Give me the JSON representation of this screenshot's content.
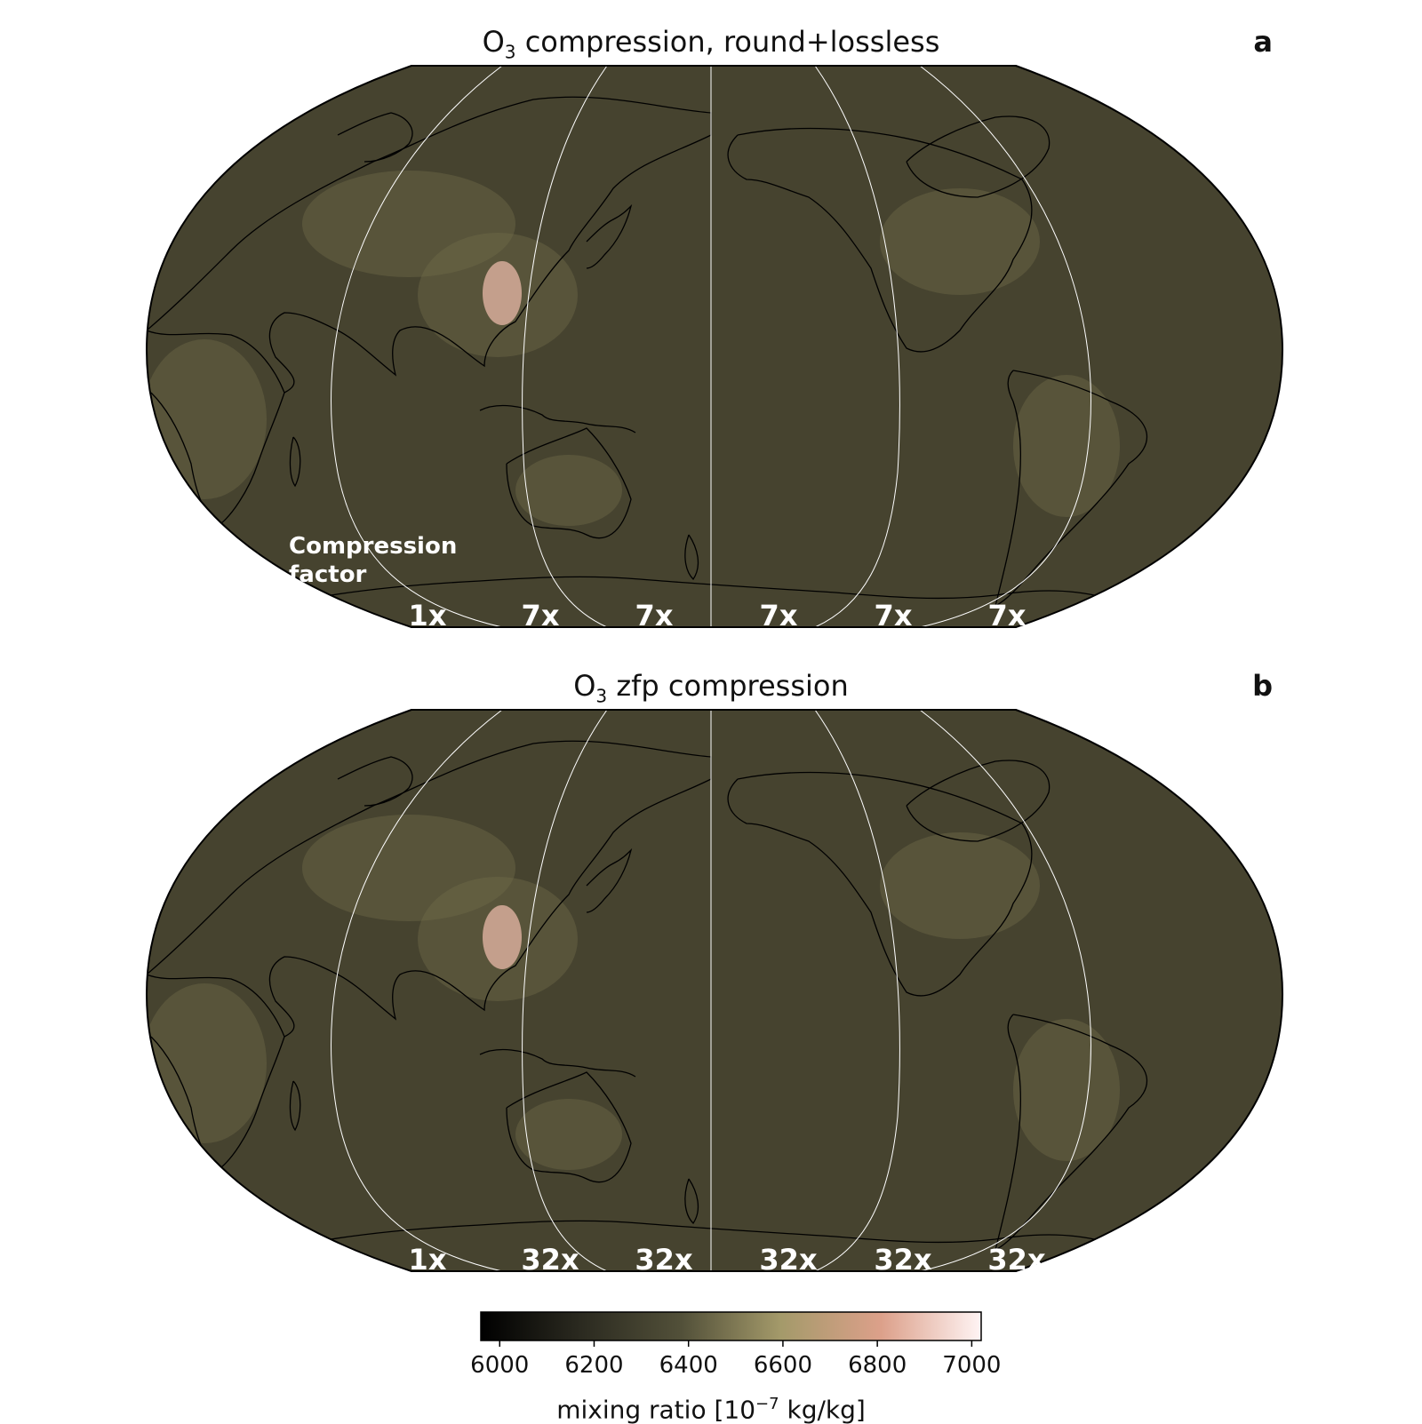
{
  "panels": [
    {
      "id": "a",
      "title_prefix": "O",
      "title_sub": "3",
      "title_rest": " compression, round+lossless",
      "letter": "a",
      "factor_title_line1": "Compression",
      "factor_title_line2": "factor",
      "factors": [
        "1x",
        "7x",
        "7x",
        "7x",
        "7x",
        "7x"
      ]
    },
    {
      "id": "b",
      "title_prefix": "O",
      "title_sub": "3",
      "title_rest": " zfp compression",
      "letter": "b",
      "factors": [
        "1x",
        "32x",
        "32x",
        "32x",
        "32x",
        "32x"
      ]
    }
  ],
  "colors": {
    "ocean": "#46432f",
    "land_light": "#6e6a4a",
    "hotspot": "#e8b8a8",
    "coast": "#000000",
    "meridian": "#ffffff"
  },
  "colorbar": {
    "ticks": [
      "6000",
      "6200",
      "6400",
      "6600",
      "6800",
      "7000"
    ],
    "tick_values": [
      6000,
      6200,
      6400,
      6600,
      6800,
      7000
    ],
    "range": [
      5960,
      7020
    ],
    "stops": [
      "#000000",
      "#2b2a20",
      "#525039",
      "#a49a6a",
      "#dca08a",
      "#fff4f4"
    ],
    "label_prefix": "mixing ratio [10",
    "label_exp": "−7",
    "label_suffix": " kg/kg]"
  }
}
